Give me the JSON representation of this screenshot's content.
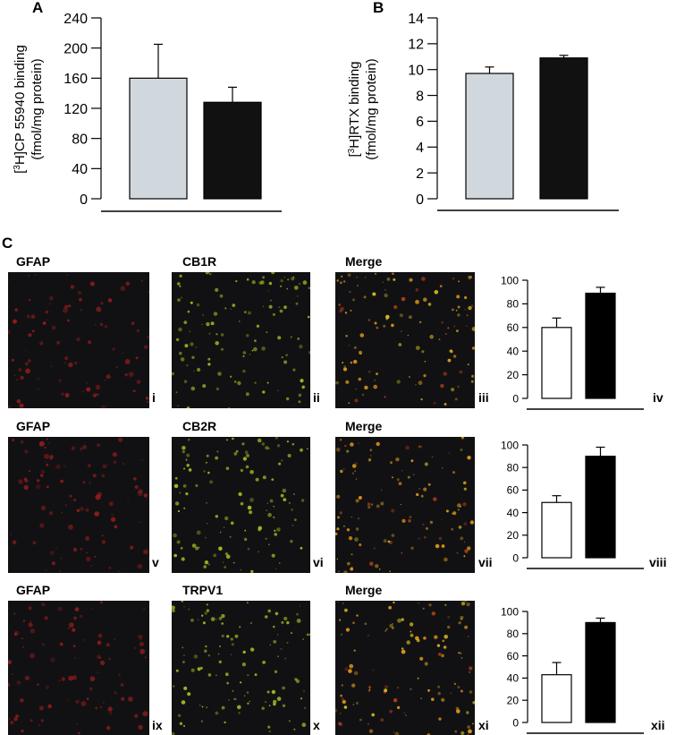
{
  "figure": {
    "panel_a": {
      "letter": "A"
    },
    "panel_b": {
      "letter": "B"
    },
    "panel_c": {
      "letter": "C"
    }
  },
  "chart_data": [
    {
      "id": "A",
      "type": "bar",
      "categories": [
        "",
        ""
      ],
      "values": [
        160,
        128
      ],
      "errors": [
        45,
        20
      ],
      "colors": [
        "#d0d8de",
        "#111111"
      ],
      "yticks": [
        0,
        40,
        80,
        120,
        160,
        200,
        240
      ],
      "ylim": [
        0,
        240
      ],
      "ylabel": {
        "sup": "3",
        "prefix": "[",
        "main": "H]CP 55940 binding",
        "line2": "(fmol/mg protein)"
      },
      "grid": false,
      "legend": "none"
    },
    {
      "id": "B",
      "type": "bar",
      "categories": [
        "",
        ""
      ],
      "values": [
        9.7,
        10.9
      ],
      "errors": [
        0.5,
        0.2
      ],
      "colors": [
        "#d0d8de",
        "#111111"
      ],
      "yticks": [
        0,
        2,
        4,
        6,
        8,
        10,
        12,
        14
      ],
      "ylim": [
        0,
        14
      ],
      "ylabel": {
        "sup": "3",
        "prefix": "[",
        "main": "H]RTX binding",
        "line2": "(fmol/mg protein)"
      },
      "grid": false,
      "legend": "none"
    },
    {
      "id": "iv",
      "type": "bar",
      "categories": [
        "",
        ""
      ],
      "values": [
        60,
        89
      ],
      "errors": [
        8,
        5
      ],
      "colors": [
        "#ffffff",
        "#000000"
      ],
      "yticks": [
        0,
        20,
        40,
        60,
        80,
        100
      ],
      "ylim": [
        0,
        100
      ],
      "grid": false,
      "legend": "none"
    },
    {
      "id": "viii",
      "type": "bar",
      "categories": [
        "",
        ""
      ],
      "values": [
        49,
        90
      ],
      "errors": [
        6,
        8
      ],
      "colors": [
        "#ffffff",
        "#000000"
      ],
      "yticks": [
        0,
        20,
        40,
        60,
        80,
        100
      ],
      "ylim": [
        0,
        100
      ],
      "grid": false,
      "legend": "none"
    },
    {
      "id": "xii",
      "type": "bar",
      "categories": [
        "",
        ""
      ],
      "values": [
        43,
        90
      ],
      "errors": [
        11,
        4
      ],
      "colors": [
        "#ffffff",
        "#000000"
      ],
      "yticks": [
        0,
        20,
        40,
        60,
        80,
        100
      ],
      "ylim": [
        0,
        100
      ],
      "grid": false,
      "legend": "none"
    }
  ],
  "micrographs": {
    "rows": [
      {
        "gfap": "GFAP",
        "receptor": "CB1R",
        "merge": "Merge",
        "numerals": [
          "i",
          "ii",
          "iii",
          "iv"
        ]
      },
      {
        "gfap": "GFAP",
        "receptor": "CB2R",
        "merge": "Merge",
        "numerals": [
          "v",
          "vi",
          "vii",
          "viii"
        ]
      },
      {
        "gfap": "GFAP",
        "receptor": "TRPV1",
        "merge": "Merge",
        "numerals": [
          "ix",
          "x",
          "xi",
          "xii"
        ]
      }
    ],
    "colors": {
      "gfap": "#c0201c",
      "receptor": "#a6c020",
      "merge": "#e09a18",
      "background": "#111114"
    }
  }
}
